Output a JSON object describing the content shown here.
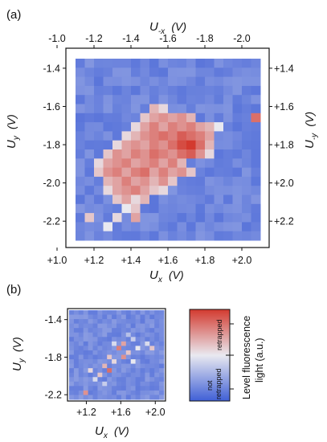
{
  "chart_data": [
    {
      "type": "heatmap",
      "panel_label": "(a)",
      "x_bottom": {
        "symbol": "U",
        "sub": "x",
        "unit": "(V)",
        "ticks": [
          "+1.0",
          "+1.2",
          "+1.4",
          "+1.6",
          "+1.8",
          "+2.0"
        ],
        "range": [
          1.0,
          2.0
        ]
      },
      "x_top": {
        "symbol": "U",
        "sub": "-x",
        "unit": "(V)",
        "ticks": [
          "-1.0",
          "-1.2",
          "-1.4",
          "-1.6",
          "-1.8",
          "-2.0"
        ],
        "range": [
          -1.0,
          -2.0
        ]
      },
      "y_left": {
        "symbol": "U",
        "sub": "y",
        "unit": "(V)",
        "ticks": [
          "-1.4",
          "-1.6",
          "-1.8",
          "-2.0",
          "-2.2"
        ],
        "range": [
          -1.4,
          -2.2
        ]
      },
      "y_right": {
        "symbol": "U",
        "sub": "-y",
        "unit": "(V)",
        "ticks": [
          "+1.4",
          "+1.6",
          "+1.8",
          "+2.0",
          "+2.2"
        ],
        "range": [
          1.4,
          2.2
        ]
      },
      "grid": {
        "rows": 20,
        "cols": 20,
        "x_start": 1.1,
        "x_end": 2.1,
        "y_start": -1.35,
        "y_end": -2.3
      },
      "hot_cells": [
        {
          "r": 5,
          "c": 8,
          "v": 0.65
        },
        {
          "r": 5,
          "c": 9,
          "v": 0.55
        },
        {
          "r": 6,
          "c": 7,
          "v": 0.6
        },
        {
          "r": 6,
          "c": 8,
          "v": 0.7
        },
        {
          "r": 6,
          "c": 9,
          "v": 0.75
        },
        {
          "r": 6,
          "c": 10,
          "v": 0.7
        },
        {
          "r": 6,
          "c": 11,
          "v": 0.75
        },
        {
          "r": 6,
          "c": 12,
          "v": 0.65
        },
        {
          "r": 6,
          "c": 19,
          "v": 0.85
        },
        {
          "r": 7,
          "c": 6,
          "v": 0.55
        },
        {
          "r": 7,
          "c": 7,
          "v": 0.7
        },
        {
          "r": 7,
          "c": 8,
          "v": 0.8
        },
        {
          "r": 7,
          "c": 9,
          "v": 0.7
        },
        {
          "r": 7,
          "c": 10,
          "v": 0.8
        },
        {
          "r": 7,
          "c": 11,
          "v": 0.75
        },
        {
          "r": 7,
          "c": 12,
          "v": 0.8
        },
        {
          "r": 7,
          "c": 13,
          "v": 0.7
        },
        {
          "r": 7,
          "c": 14,
          "v": 0.65
        },
        {
          "r": 7,
          "c": 15,
          "v": 0.5
        },
        {
          "r": 8,
          "c": 5,
          "v": 0.55
        },
        {
          "r": 8,
          "c": 6,
          "v": 0.65
        },
        {
          "r": 8,
          "c": 7,
          "v": 0.75
        },
        {
          "r": 8,
          "c": 8,
          "v": 0.8
        },
        {
          "r": 8,
          "c": 9,
          "v": 0.85
        },
        {
          "r": 8,
          "c": 10,
          "v": 0.8
        },
        {
          "r": 8,
          "c": 11,
          "v": 0.9
        },
        {
          "r": 8,
          "c": 12,
          "v": 0.85
        },
        {
          "r": 8,
          "c": 13,
          "v": 0.8
        },
        {
          "r": 8,
          "c": 14,
          "v": 0.7
        },
        {
          "r": 9,
          "c": 4,
          "v": 0.55
        },
        {
          "r": 9,
          "c": 5,
          "v": 0.7
        },
        {
          "r": 9,
          "c": 6,
          "v": 0.75
        },
        {
          "r": 9,
          "c": 7,
          "v": 0.7
        },
        {
          "r": 9,
          "c": 8,
          "v": 0.8
        },
        {
          "r": 9,
          "c": 9,
          "v": 0.75
        },
        {
          "r": 9,
          "c": 10,
          "v": 0.85
        },
        {
          "r": 9,
          "c": 11,
          "v": 0.95
        },
        {
          "r": 9,
          "c": 12,
          "v": 1.0
        },
        {
          "r": 9,
          "c": 13,
          "v": 0.85
        },
        {
          "r": 9,
          "c": 14,
          "v": 0.65
        },
        {
          "r": 10,
          "c": 3,
          "v": 0.6
        },
        {
          "r": 10,
          "c": 4,
          "v": 0.75
        },
        {
          "r": 10,
          "c": 5,
          "v": 0.7
        },
        {
          "r": 10,
          "c": 6,
          "v": 0.8
        },
        {
          "r": 10,
          "c": 7,
          "v": 0.75
        },
        {
          "r": 10,
          "c": 8,
          "v": 0.85
        },
        {
          "r": 10,
          "c": 9,
          "v": 0.8
        },
        {
          "r": 10,
          "c": 10,
          "v": 0.75
        },
        {
          "r": 10,
          "c": 11,
          "v": 0.85
        },
        {
          "r": 10,
          "c": 12,
          "v": 0.9
        },
        {
          "r": 10,
          "c": 13,
          "v": 0.75
        },
        {
          "r": 10,
          "c": 14,
          "v": 0.55
        },
        {
          "r": 11,
          "c": 2,
          "v": 0.55
        },
        {
          "r": 11,
          "c": 3,
          "v": 0.7
        },
        {
          "r": 11,
          "c": 4,
          "v": 0.75
        },
        {
          "r": 11,
          "c": 5,
          "v": 0.8
        },
        {
          "r": 11,
          "c": 6,
          "v": 0.7
        },
        {
          "r": 11,
          "c": 7,
          "v": 0.75
        },
        {
          "r": 11,
          "c": 8,
          "v": 0.8
        },
        {
          "r": 11,
          "c": 9,
          "v": 0.7
        },
        {
          "r": 11,
          "c": 10,
          "v": 0.8
        },
        {
          "r": 11,
          "c": 11,
          "v": 0.65
        },
        {
          "r": 12,
          "c": 2,
          "v": 0.6
        },
        {
          "r": 12,
          "c": 3,
          "v": 0.75
        },
        {
          "r": 12,
          "c": 4,
          "v": 0.8
        },
        {
          "r": 12,
          "c": 5,
          "v": 0.7
        },
        {
          "r": 12,
          "c": 6,
          "v": 0.8
        },
        {
          "r": 12,
          "c": 7,
          "v": 0.85
        },
        {
          "r": 12,
          "c": 8,
          "v": 0.7
        },
        {
          "r": 12,
          "c": 9,
          "v": 0.8
        },
        {
          "r": 12,
          "c": 10,
          "v": 0.7
        },
        {
          "r": 12,
          "c": 11,
          "v": 0.75
        },
        {
          "r": 12,
          "c": 12,
          "v": 0.6
        },
        {
          "r": 13,
          "c": 3,
          "v": 0.65
        },
        {
          "r": 13,
          "c": 4,
          "v": 0.7
        },
        {
          "r": 13,
          "c": 5,
          "v": 0.8
        },
        {
          "r": 13,
          "c": 6,
          "v": 0.7
        },
        {
          "r": 13,
          "c": 7,
          "v": 0.75
        },
        {
          "r": 13,
          "c": 8,
          "v": 0.65
        },
        {
          "r": 13,
          "c": 9,
          "v": 0.75
        },
        {
          "r": 13,
          "c": 10,
          "v": 0.6
        },
        {
          "r": 14,
          "c": 3,
          "v": 0.55
        },
        {
          "r": 14,
          "c": 4,
          "v": 0.7
        },
        {
          "r": 14,
          "c": 5,
          "v": 0.75
        },
        {
          "r": 14,
          "c": 6,
          "v": 0.8
        },
        {
          "r": 14,
          "c": 7,
          "v": 0.7
        },
        {
          "r": 14,
          "c": 8,
          "v": 0.6
        },
        {
          "r": 14,
          "c": 9,
          "v": 0.55
        },
        {
          "r": 15,
          "c": 4,
          "v": 0.6
        },
        {
          "r": 15,
          "c": 5,
          "v": 0.7
        },
        {
          "r": 15,
          "c": 6,
          "v": 0.55
        },
        {
          "r": 15,
          "c": 7,
          "v": 0.65
        },
        {
          "r": 16,
          "c": 5,
          "v": 0.5
        },
        {
          "r": 16,
          "c": 6,
          "v": 0.6
        },
        {
          "r": 17,
          "c": 1,
          "v": 0.6
        },
        {
          "r": 17,
          "c": 4,
          "v": 0.55
        },
        {
          "r": 17,
          "c": 6,
          "v": 0.7
        },
        {
          "r": 18,
          "c": 3,
          "v": 0.5
        }
      ]
    },
    {
      "type": "heatmap",
      "panel_label": "(b)",
      "x": {
        "symbol": "U",
        "sub": "x",
        "unit": "(V)",
        "ticks": [
          "+1.2",
          "+1.6",
          "+2.0"
        ],
        "range": [
          1.2,
          2.0
        ]
      },
      "y": {
        "symbol": "U",
        "sub": "y",
        "unit": "(V)",
        "ticks": [
          "-1.4",
          "-1.8",
          "-2.2"
        ],
        "range": [
          -1.4,
          -2.2
        ]
      },
      "grid": {
        "rows": 20,
        "cols": 20,
        "x_start": 1.0,
        "x_end": 2.1,
        "y_start": -1.3,
        "y_end": -2.25
      },
      "hot_cells": [
        {
          "r": 5,
          "c": 12,
          "v": 0.35
        },
        {
          "r": 6,
          "c": 13,
          "v": 0.4
        },
        {
          "r": 7,
          "c": 9,
          "v": 0.45
        },
        {
          "r": 7,
          "c": 11,
          "v": 0.7
        },
        {
          "r": 7,
          "c": 16,
          "v": 0.45
        },
        {
          "r": 8,
          "c": 10,
          "v": 0.8
        },
        {
          "r": 8,
          "c": 14,
          "v": 0.5
        },
        {
          "r": 8,
          "c": 17,
          "v": 0.6
        },
        {
          "r": 9,
          "c": 12,
          "v": 0.6
        },
        {
          "r": 10,
          "c": 8,
          "v": 0.6
        },
        {
          "r": 10,
          "c": 11,
          "v": 0.75
        },
        {
          "r": 11,
          "c": 9,
          "v": 0.55
        },
        {
          "r": 11,
          "c": 13,
          "v": 0.5
        },
        {
          "r": 12,
          "c": 7,
          "v": 0.65
        },
        {
          "r": 13,
          "c": 4,
          "v": 0.55
        },
        {
          "r": 13,
          "c": 8,
          "v": 0.85
        },
        {
          "r": 14,
          "c": 6,
          "v": 0.6
        },
        {
          "r": 15,
          "c": 5,
          "v": 0.45
        },
        {
          "r": 16,
          "c": 7,
          "v": 0.4
        },
        {
          "r": 18,
          "c": 3,
          "v": 0.75
        }
      ]
    }
  ],
  "colorbar": {
    "title_line1": "Level fluorescence",
    "title_line2": "light  (a.u.)",
    "upper_label": "retrapped",
    "lower_label_line1": "not",
    "lower_label_line2": "retrapped",
    "colors": {
      "high": "#d33a2f",
      "mid": "#e9e9f0",
      "low": "#3f5fd6"
    }
  }
}
